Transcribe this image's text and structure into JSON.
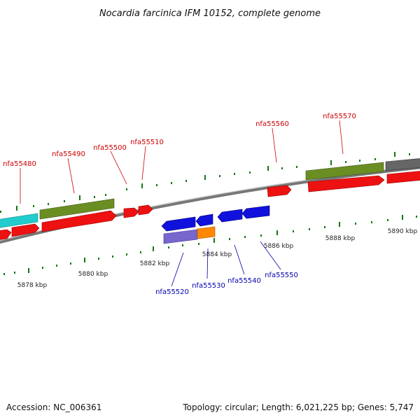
{
  "title": "Nocardia farcinica IFM 10152, complete genome",
  "footer": {
    "accession": "Accession: NC_006361",
    "summary": "Topology: circular; Length: 6,021,225 bp; Genes: 5,747"
  },
  "scale_labels": [
    "5878 kbp",
    "5880 kbp",
    "5882 kbp",
    "5884 kbp",
    "5886 kbp",
    "5888 kbp",
    "5890 kbp"
  ],
  "gene_labels_top": [
    "nfa55480",
    "nfa55490",
    "nfa55500",
    "nfa55510",
    "nfa55560",
    "nfa55570"
  ],
  "gene_labels_bottom": [
    "nfa55520",
    "nfa55530",
    "nfa55540",
    "nfa55550"
  ],
  "colors": {
    "cds": "#ee1111",
    "reverse": "#1111dd",
    "olive": "#6b8e23",
    "cyan": "#22cccc",
    "gray": "#666666",
    "orange": "#ff8800",
    "purple": "#7766cc",
    "tick": "#117711"
  }
}
